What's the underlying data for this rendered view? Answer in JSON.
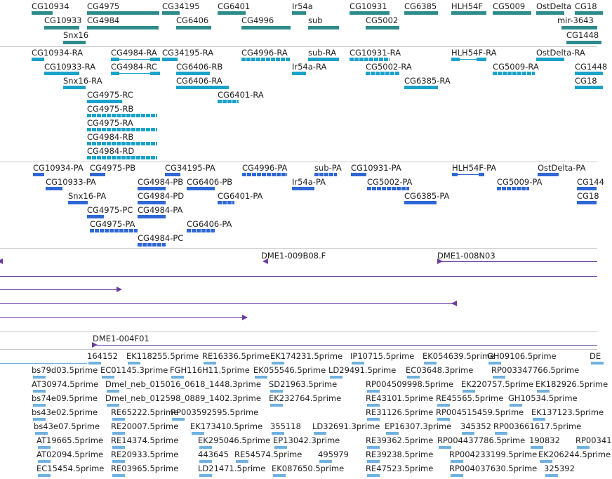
{
  "colors": {
    "gene": "#2e8b8b",
    "mrna": "#1aa3c9",
    "protein": "#2f67d6",
    "bac": "#6a3ea1",
    "est": "#6fb2e0"
  },
  "tracks": {
    "genes": {
      "labels": [
        "CG10934",
        "CG4975",
        "CG34195",
        "CG6401",
        "Ir54a",
        "CG10931",
        "CG6385",
        "HLH54F",
        "CG5009",
        "OstDelta",
        "CG18",
        "CG10933",
        "CG4984",
        "CG6406",
        "CG4996",
        "sub",
        "CG5002",
        "mir-3643",
        "Snx16",
        "CG1448"
      ]
    },
    "transcripts": {
      "labels": [
        "CG10934-RA",
        "CG4984-RA",
        "CG34195-RA",
        "CG4996-RA",
        "sub-RA",
        "CG10931-RA",
        "HLH54F-RA",
        "OstDelta-RA",
        "CG10933-RA",
        "CG4984-RC",
        "CG6406-RB",
        "Ir54a-RA",
        "CG5002-RA",
        "CG5009-RA",
        "CG1448",
        "Snx16-RA",
        "CG6406-RA",
        "CG6385-RA",
        "CG18",
        "CG4975-RC",
        "CG6401-RA",
        "CG4975-RB",
        "CG4975-RA",
        "CG4984-RB",
        "CG4984-RD"
      ]
    },
    "proteins": {
      "labels": [
        "CG10934-PA",
        "CG4975-PB",
        "CG34195-PA",
        "CG4996-PA",
        "sub-PA",
        "CG10931-PA",
        "HLH54F-PA",
        "OstDelta-PA",
        "CG10933-PA",
        "CG4984-PB",
        "CG6406-PB",
        "Ir54a-PA",
        "CG5002-PA",
        "CG5009-PA",
        "CG144",
        "Snx16-PA",
        "CG4984-PD",
        "CG6401-PA",
        "CG6385-PA",
        "CG18",
        "CG4975-PC",
        "CG4984-PA",
        "CG4975-PA",
        "CG6406-PA",
        "CG4984-PC"
      ]
    },
    "bacs": {
      "labels": [
        "DME1-009B08.F",
        "DME1-008N03"
      ]
    },
    "clones": {
      "labels": [
        "DME1-004F01"
      ]
    },
    "ests": {
      "labels": [
        "164152",
        "EK118255.5prime",
        "RE16336.5prime",
        "EK174231.5prime",
        "IP10715.5prime",
        "EK054639.5prime",
        "GH09106.5prime",
        "DE",
        "bs79d03.5prime",
        "EC01145.3prime",
        "FGH116H11.5prime",
        "EK055546.5prime",
        "LD29491.5prime",
        "EC03648.3prime",
        "RP003347766.5prime",
        "AT30974.5prime",
        "Dmel_neb_015016_0618_1448.3prime",
        "SD21963.5prime",
        "RP004509998.5prime",
        "EK220757.5prime",
        "EK182926.5prime",
        "bs74e09.5prime",
        "Dmel_neb_012598_0889_1402.3prime",
        "EK232764.5prime",
        "RE43101.5prime",
        "RE45565.5prime",
        "GH10534.5prime",
        "bs43e02.5prime",
        "RE65222.5prime",
        "RP003592595.5prime",
        "RE31126.5prime",
        "RP004515459.5prime",
        "EK137123.5prime",
        "bs43e07.5prime",
        "RE20007.5prime",
        "EK173410.5prime",
        "355118",
        "LD32691.3prime",
        "EP16307.3prime",
        "345352",
        "RP003661617.5prime",
        "AT19665.5prime",
        "RE14374.5prime",
        "EK295046.5prime",
        "EP13042.3prime",
        "RE39362.5prime",
        "RP004437786.5prime",
        "190832",
        "RP00341",
        "AT02094.5prime",
        "RE20933.5prime",
        "443645",
        "RE54574.5prime",
        "495979",
        "RE39238.5prime",
        "RP004233199.5prime",
        "EK206244.5prime",
        "EC15454.5prime",
        "RE03965.5prime",
        "LD21471.5prime",
        "EK087650.5prime",
        "RE47523.5prime",
        "RP004037630.5prime",
        "325392"
      ]
    }
  }
}
